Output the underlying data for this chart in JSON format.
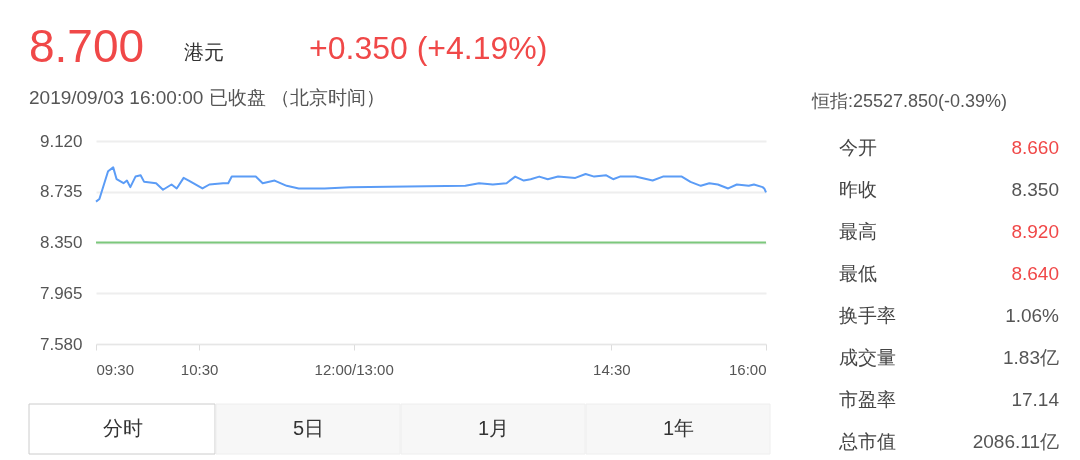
{
  "chart_data": [
    {
      "type": "line",
      "title": "8.700",
      "subtitle": "2019/09/03 16:00:00  已收盘 （北京时间）",
      "annotations": [
        "港元",
        "+0.350 (+4.19%)",
        "分时",
        "5日",
        "1月",
        "1年"
      ],
      "xlim": [
        9.5,
        16
      ],
      "xticks": [
        {
          "value": 9.5,
          "label": "09:30"
        },
        {
          "value": 10.5,
          "label": "10:30"
        },
        {
          "value": 12,
          "label": "12:00/13:00"
        },
        {
          "value": 14.5,
          "label": "14:30"
        },
        {
          "value": 16,
          "label": "16:00"
        }
      ],
      "ylim": [
        7.58,
        9.12
      ],
      "yticks": [
        {
          "value": 7.58,
          "label": "7.580"
        },
        {
          "value": 7.965,
          "label": "7.965"
        },
        {
          "value": 8.35,
          "label": "8.350"
        },
        {
          "value": 8.735,
          "label": "8.735"
        },
        {
          "value": 9.12,
          "label": "9.120"
        }
      ],
      "grid": "y",
      "marker": "none",
      "line_style": "solid",
      "ref_lines": [
        {
          "axis": "y",
          "value": 8.35,
          "color": "#7cc87c"
        }
      ],
      "series": [
        {
          "color": "#5b9cf6",
          "x": [
            9.5,
            9.533,
            9.617,
            9.667,
            9.7,
            9.767,
            9.8,
            9.833,
            9.883,
            9.933,
            9.967,
            10.083,
            10.15,
            10.233,
            10.283,
            10.35,
            10.4,
            10.533,
            10.6,
            10.733,
            10.783,
            10.817,
            11.05,
            11.117,
            11.233,
            11.35,
            11.467,
            11.717,
            11.967,
            13.083,
            13.217,
            13.35,
            13.483,
            13.567,
            13.65,
            13.717,
            13.8,
            13.883,
            13.983,
            14.15,
            14.25,
            14.333,
            14.45,
            14.517,
            14.583,
            14.733,
            14.9,
            15.0,
            15.183,
            15.267,
            15.367,
            15.45,
            15.533,
            15.633,
            15.717,
            15.833,
            15.883,
            15.967,
            15.983,
            16
          ],
          "values": [
            8.66,
            8.68,
            8.89,
            8.92,
            8.83,
            8.8,
            8.82,
            8.77,
            8.85,
            8.86,
            8.81,
            8.8,
            8.75,
            8.79,
            8.76,
            8.84,
            8.82,
            8.76,
            8.79,
            8.8,
            8.8,
            8.85,
            8.85,
            8.8,
            8.82,
            8.78,
            8.76,
            8.76,
            8.77,
            8.78,
            8.8,
            8.79,
            8.8,
            8.85,
            8.82,
            8.83,
            8.85,
            8.83,
            8.85,
            8.84,
            8.87,
            8.85,
            8.86,
            8.83,
            8.85,
            8.85,
            8.82,
            8.85,
            8.85,
            8.81,
            8.78,
            8.8,
            8.79,
            8.76,
            8.79,
            8.78,
            8.79,
            8.77,
            8.76,
            8.73
          ]
        }
      ]
    },
    {
      "type": "other",
      "title": "恒指:25527.850(-0.39%)",
      "annotations": [
        "今开",
        "8.660",
        "昨收",
        "8.350",
        "最高",
        "8.920",
        "最低",
        "8.640",
        "换手率",
        "1.06%",
        "成交量",
        "1.83亿",
        "市盈率",
        "17.14",
        "总市值",
        "2086.11亿"
      ],
      "colors": [
        "#444444",
        "#f04848",
        "#444444",
        "#555555",
        "#444444",
        "#f04848",
        "#444444",
        "#f04848",
        "#444444",
        "#555555",
        "#444444",
        "#555555",
        "#444444",
        "#555555",
        "#444444",
        "#555555"
      ]
    }
  ]
}
